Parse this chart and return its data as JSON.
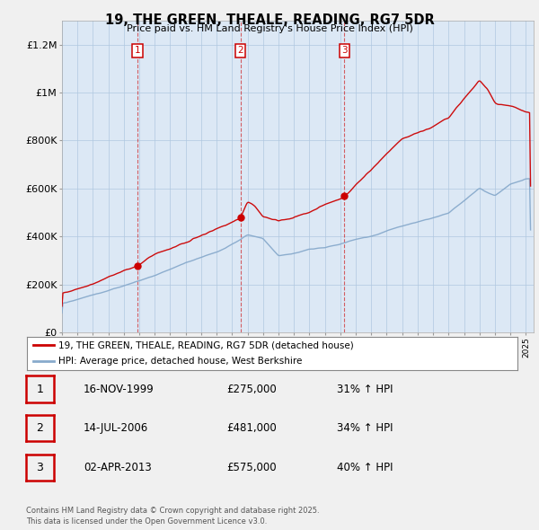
{
  "title": "19, THE GREEN, THEALE, READING, RG7 5DR",
  "subtitle": "Price paid vs. HM Land Registry's House Price Index (HPI)",
  "red_color": "#cc0000",
  "blue_color": "#88aacc",
  "chart_bg": "#dce8f5",
  "fig_bg": "#f0f0f0",
  "legend_line1": "19, THE GREEN, THEALE, READING, RG7 5DR (detached house)",
  "legend_line2": "HPI: Average price, detached house, West Berkshire",
  "table_rows": [
    [
      "1",
      "16-NOV-1999",
      "£275,000",
      "31% ↑ HPI"
    ],
    [
      "2",
      "14-JUL-2006",
      "£481,000",
      "34% ↑ HPI"
    ],
    [
      "3",
      "02-APR-2013",
      "£575,000",
      "40% ↑ HPI"
    ]
  ],
  "purchase_years": [
    1999.88,
    2006.54,
    2013.25
  ],
  "footer": "Contains HM Land Registry data © Crown copyright and database right 2025.\nThis data is licensed under the Open Government Licence v3.0.",
  "xlim": [
    1995,
    2025.5
  ],
  "ylim": [
    0,
    1300000
  ],
  "yticks": [
    0,
    200000,
    400000,
    600000,
    800000,
    1000000,
    1200000
  ],
  "ytick_labels": [
    "£0",
    "£200K",
    "£400K",
    "£600K",
    "£800K",
    "£1M",
    "£1.2M"
  ]
}
